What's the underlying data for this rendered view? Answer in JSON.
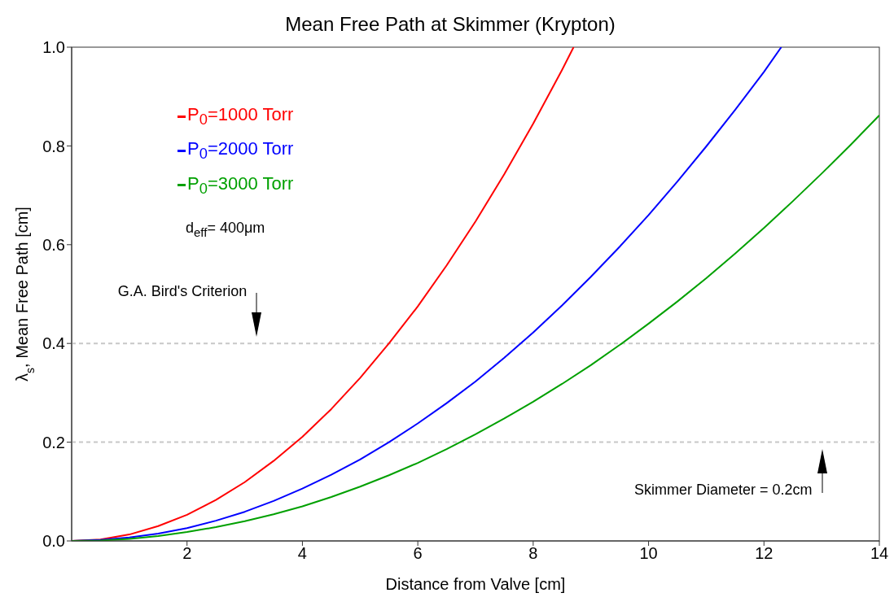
{
  "chart_data": {
    "type": "line",
    "title": "Mean Free Path at Skimmer (Krypton)",
    "xlabel": "Distance from Valve [cm]",
    "ylabel": "λ$_{s}$, Mean Free Path [cm]",
    "xlim": [
      0,
      14
    ],
    "xticks": [
      2,
      4,
      6,
      8,
      10,
      12,
      14
    ],
    "ylim": [
      0,
      1
    ],
    "yticks": [
      {
        "value": 0,
        "label": "0.0"
      },
      0.2,
      0.4,
      0.6,
      0.8,
      {
        "value": 1,
        "label": "1.0"
      }
    ],
    "legend": "top left",
    "marker": "none",
    "line_style": "solid",
    "series": [
      {
        "name": "P$_{0}$=1000 Torr",
        "color": "#ff0000",
        "x": [
          0,
          0.5,
          1,
          1.5,
          2,
          2.5,
          3,
          3.5,
          4,
          4.5,
          5,
          5.5,
          6,
          6.5,
          7,
          7.5,
          8,
          8.5,
          8.7
        ],
        "values": [
          0,
          0.003,
          0.013,
          0.03,
          0.053,
          0.083,
          0.119,
          0.162,
          0.211,
          0.267,
          0.33,
          0.4,
          0.475,
          0.558,
          0.647,
          0.743,
          0.845,
          0.954,
          1.0
        ]
      },
      {
        "name": "P$_{0}$=2000 Torr",
        "color": "#0000ff",
        "x": [
          0,
          0.5,
          1,
          1.5,
          2,
          2.5,
          3,
          3.5,
          4,
          4.5,
          5,
          5.5,
          6,
          6.5,
          7,
          7.5,
          8,
          8.5,
          9,
          9.5,
          10,
          10.5,
          11,
          11.5,
          12,
          12.3
        ],
        "values": [
          0,
          0.002,
          0.007,
          0.015,
          0.026,
          0.041,
          0.059,
          0.081,
          0.106,
          0.134,
          0.165,
          0.2,
          0.238,
          0.279,
          0.323,
          0.371,
          0.422,
          0.477,
          0.535,
          0.596,
          0.66,
          0.728,
          0.799,
          0.873,
          0.95,
          1.0
        ]
      },
      {
        "name": "P$_{0}$=3000 Torr",
        "color": "#00a000",
        "x": [
          0,
          0.5,
          1,
          1.5,
          2,
          2.5,
          3,
          3.5,
          4,
          4.5,
          5,
          5.5,
          6,
          6.5,
          7,
          7.5,
          8,
          8.5,
          9,
          9.5,
          10,
          10.5,
          11,
          11.5,
          12,
          12.5,
          13,
          13.5,
          14
        ],
        "values": [
          0,
          0.001,
          0.004,
          0.01,
          0.018,
          0.028,
          0.04,
          0.054,
          0.07,
          0.089,
          0.11,
          0.133,
          0.158,
          0.186,
          0.216,
          0.248,
          0.282,
          0.318,
          0.356,
          0.397,
          0.44,
          0.485,
          0.532,
          0.582,
          0.634,
          0.688,
          0.744,
          0.802,
          0.862
        ]
      }
    ],
    "ref_lines": [
      {
        "axis": "y",
        "value": 0.4,
        "color": "#c8c8c8",
        "line_style": "dashed"
      },
      {
        "axis": "y",
        "value": 0.2,
        "color": "#c8c8c8",
        "line_style": "dashed"
      }
    ],
    "annotations": [
      "d$_{eff}$= 400μm",
      "G.A. Bird's Criterion",
      "Skimmer Diameter = 0.2cm"
    ]
  }
}
